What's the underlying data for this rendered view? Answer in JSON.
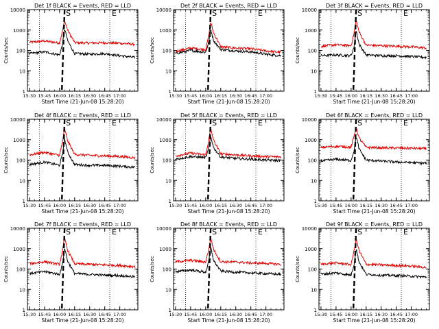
{
  "colors": {
    "events": "#000000",
    "lld": "#e00000",
    "axis": "#000000",
    "background": "#ffffff"
  },
  "chart_data": [
    {
      "type": "line",
      "title": "Det 1f BLACK = Events, RED = LLD",
      "xlabel": "Start Time (21-Jun-08 15:28:20)",
      "ylabel": "Counts/sec",
      "yscale": "log",
      "ylim": [
        1,
        10000
      ],
      "xlim": [
        "15:28",
        "17:18"
      ],
      "x_ticks": [
        "15:30",
        "15:45",
        "16:00",
        "16:15",
        "16:30",
        "16:45",
        "17:00"
      ],
      "y_ticks": [
        "1",
        "10",
        "100",
        "1000",
        "10000"
      ],
      "annotations": [
        "S",
        "E"
      ],
      "markers": {
        "dotted_start": "15:40",
        "dotted_end": "16:50",
        "peak_dashed": "16:05"
      },
      "series": [
        {
          "x": [
            "15:30",
            "15:45",
            "16:00",
            "16:03",
            "16:05",
            "16:08",
            "16:15",
            "16:30",
            "16:45",
            "17:00",
            "17:15"
          ],
          "values": [
            250,
            290,
            230,
            900,
            3000,
            1000,
            240,
            230,
            240,
            225,
            200
          ]
        },
        {
          "x": [
            "15:30",
            "15:45",
            "16:00",
            "16:03",
            "16:05",
            "16:08",
            "16:15",
            "16:30",
            "16:45",
            "17:00",
            "17:15"
          ],
          "values": [
            70,
            85,
            60,
            200,
            1200,
            300,
            70,
            65,
            70,
            55,
            45
          ]
        }
      ]
    },
    {
      "type": "line",
      "title": "Det 2f BLACK = Events, RED = LLD",
      "xlabel": "Start Time (21-Jun-08 15:28:20)",
      "ylabel": "Counts/sec",
      "yscale": "log",
      "ylim": [
        1,
        10000
      ],
      "xlim": [
        "15:28",
        "17:18"
      ],
      "x_ticks": [
        "15:30",
        "15:45",
        "16:00",
        "16:15",
        "16:30",
        "16:45",
        "17:00"
      ],
      "y_ticks": [
        "1",
        "10",
        "100",
        "1000",
        "10000"
      ],
      "annotations": [
        "S",
        "E"
      ],
      "markers": {
        "dotted_start": "15:40",
        "dotted_end": "16:50",
        "peak_dashed": "16:05"
      },
      "series": [
        {
          "x": [
            "15:30",
            "15:45",
            "16:00",
            "16:03",
            "16:05",
            "16:08",
            "16:15",
            "16:30",
            "16:45",
            "17:00",
            "17:15"
          ],
          "values": [
            90,
            130,
            110,
            500,
            2500,
            700,
            150,
            130,
            120,
            95,
            80
          ]
        },
        {
          "x": [
            "15:30",
            "15:45",
            "16:00",
            "16:03",
            "16:05",
            "16:08",
            "16:15",
            "16:30",
            "16:45",
            "17:00",
            "17:15"
          ],
          "values": [
            70,
            100,
            80,
            250,
            1100,
            300,
            110,
            95,
            85,
            65,
            55
          ]
        }
      ]
    },
    {
      "type": "line",
      "title": "Det 3f BLACK = Events, RED = LLD",
      "xlabel": "Start Time (21-Jun-08 15:28:20)",
      "ylabel": "Counts/sec",
      "yscale": "log",
      "ylim": [
        1,
        10000
      ],
      "xlim": [
        "15:28",
        "17:18"
      ],
      "x_ticks": [
        "15:30",
        "15:45",
        "16:00",
        "16:15",
        "16:30",
        "16:45",
        "17:00"
      ],
      "y_ticks": [
        "1",
        "10",
        "100",
        "1000",
        "10000"
      ],
      "annotations": [
        "S",
        "E"
      ],
      "markers": {
        "dotted_start": "15:40",
        "dotted_end": "16:50",
        "peak_dashed": "16:05"
      },
      "series": [
        {
          "x": [
            "15:30",
            "15:45",
            "16:00",
            "16:03",
            "16:05",
            "16:08",
            "16:15",
            "16:30",
            "16:45",
            "17:00",
            "17:15"
          ],
          "values": [
            160,
            190,
            170,
            700,
            3000,
            800,
            180,
            170,
            160,
            150,
            130
          ]
        },
        {
          "x": [
            "15:30",
            "15:45",
            "16:00",
            "16:03",
            "16:05",
            "16:08",
            "16:15",
            "16:30",
            "16:45",
            "17:00",
            "17:15"
          ],
          "values": [
            55,
            60,
            55,
            150,
            1000,
            200,
            60,
            55,
            55,
            50,
            45
          ]
        }
      ]
    },
    {
      "type": "line",
      "title": "Det 4f BLACK = Events, RED = LLD",
      "xlabel": "Start Time (21-Jun-08 15:28:20)",
      "ylabel": "Counts/sec",
      "yscale": "log",
      "ylim": [
        1,
        10000
      ],
      "xlim": [
        "15:28",
        "17:18"
      ],
      "x_ticks": [
        "15:30",
        "15:45",
        "16:00",
        "16:15",
        "16:30",
        "16:45",
        "17:00"
      ],
      "y_ticks": [
        "1",
        "10",
        "100",
        "1000",
        "10000"
      ],
      "annotations": [
        "S",
        "E"
      ],
      "markers": {
        "dotted_start": "15:40",
        "dotted_end": "16:50",
        "peak_dashed": "16:05"
      },
      "series": [
        {
          "x": [
            "15:30",
            "15:45",
            "16:00",
            "16:03",
            "16:05",
            "16:08",
            "16:15",
            "16:30",
            "16:45",
            "17:00",
            "17:15"
          ],
          "values": [
            180,
            240,
            170,
            800,
            3500,
            900,
            190,
            170,
            160,
            150,
            130
          ]
        },
        {
          "x": [
            "15:30",
            "15:45",
            "16:00",
            "16:03",
            "16:05",
            "16:08",
            "16:15",
            "16:30",
            "16:45",
            "17:00",
            "17:15"
          ],
          "values": [
            60,
            80,
            55,
            200,
            1100,
            250,
            60,
            55,
            55,
            50,
            45
          ]
        }
      ]
    },
    {
      "type": "line",
      "title": "Det 5f BLACK = Events, RED = LLD",
      "xlabel": "Start Time (21-Jun-08 15:28:20)",
      "ylabel": "Counts/sec",
      "yscale": "log",
      "ylim": [
        1,
        10000
      ],
      "xlim": [
        "15:28",
        "17:18"
      ],
      "x_ticks": [
        "15:30",
        "15:45",
        "16:00",
        "16:15",
        "16:30",
        "16:45",
        "17:00"
      ],
      "y_ticks": [
        "1",
        "10",
        "100",
        "1000",
        "10000"
      ],
      "annotations": [
        "S",
        "E"
      ],
      "markers": {
        "dotted_start": "15:40",
        "dotted_end": "16:50",
        "peak_dashed": "16:05"
      },
      "series": [
        {
          "x": [
            "15:30",
            "15:45",
            "16:00",
            "16:03",
            "16:05",
            "16:08",
            "16:15",
            "16:30",
            "16:45",
            "17:00",
            "17:15"
          ],
          "values": [
            160,
            220,
            180,
            900,
            3500,
            900,
            200,
            180,
            160,
            150,
            140
          ]
        },
        {
          "x": [
            "15:30",
            "15:45",
            "16:00",
            "16:03",
            "16:05",
            "16:08",
            "16:15",
            "16:30",
            "16:45",
            "17:00",
            "17:15"
          ],
          "values": [
            110,
            150,
            130,
            350,
            1500,
            400,
            140,
            120,
            110,
            100,
            95
          ]
        }
      ]
    },
    {
      "type": "line",
      "title": "Det 6f BLACK = Events, RED = LLD",
      "xlabel": "Start Time (21-Jun-08 15:28:20)",
      "ylabel": "Counts/sec",
      "yscale": "log",
      "ylim": [
        1,
        10000
      ],
      "xlim": [
        "15:28",
        "17:18"
      ],
      "x_ticks": [
        "15:30",
        "15:45",
        "16:00",
        "16:15",
        "16:30",
        "16:45",
        "17:00"
      ],
      "y_ticks": [
        "1",
        "10",
        "100",
        "1000",
        "10000"
      ],
      "annotations": [
        "S",
        "E"
      ],
      "markers": {
        "dotted_start": "15:40",
        "dotted_end": "16:50",
        "peak_dashed": "16:05"
      },
      "series": [
        {
          "x": [
            "15:30",
            "15:45",
            "16:00",
            "16:03",
            "16:05",
            "16:08",
            "16:15",
            "16:30",
            "16:45",
            "17:00",
            "17:15"
          ],
          "values": [
            420,
            470,
            430,
            1500,
            4000,
            1200,
            420,
            400,
            390,
            380,
            360
          ]
        },
        {
          "x": [
            "15:30",
            "15:45",
            "16:00",
            "16:03",
            "16:05",
            "16:08",
            "16:15",
            "16:30",
            "16:45",
            "17:00",
            "17:15"
          ],
          "values": [
            90,
            110,
            95,
            300,
            1500,
            350,
            100,
            90,
            80,
            75,
            70
          ]
        }
      ]
    },
    {
      "type": "line",
      "title": "Det 7f BLACK = Events, RED = LLD",
      "xlabel": "Start Time (21-Jun-08 15:28:20)",
      "ylabel": "Counts/sec",
      "yscale": "log",
      "ylim": [
        1,
        10000
      ],
      "xlim": [
        "15:28",
        "17:18"
      ],
      "x_ticks": [
        "15:30",
        "15:45",
        "16:00",
        "16:15",
        "16:30",
        "16:45",
        "17:00"
      ],
      "y_ticks": [
        "1",
        "10",
        "100",
        "1000",
        "10000"
      ],
      "annotations": [
        "S",
        "E"
      ],
      "markers": {
        "dotted_start": "15:40",
        "dotted_end": "16:50",
        "peak_dashed": "16:05"
      },
      "series": [
        {
          "x": [
            "15:30",
            "15:45",
            "16:00",
            "16:03",
            "16:05",
            "16:08",
            "16:15",
            "16:30",
            "16:45",
            "17:00",
            "17:15"
          ],
          "values": [
            180,
            230,
            170,
            800,
            3500,
            850,
            180,
            170,
            160,
            150,
            130
          ]
        },
        {
          "x": [
            "15:30",
            "15:45",
            "16:00",
            "16:03",
            "16:05",
            "16:08",
            "16:15",
            "16:30",
            "16:45",
            "17:00",
            "17:15"
          ],
          "values": [
            60,
            75,
            55,
            180,
            1100,
            250,
            60,
            55,
            50,
            48,
            42
          ]
        }
      ]
    },
    {
      "type": "line",
      "title": "Det 8f BLACK = Events, RED = LLD",
      "xlabel": "Start Time (21-Jun-08 15:28:20)",
      "ylabel": "Counts/sec",
      "yscale": "log",
      "ylim": [
        1,
        10000
      ],
      "xlim": [
        "15:28",
        "17:18"
      ],
      "x_ticks": [
        "15:30",
        "15:45",
        "16:00",
        "16:15",
        "16:30",
        "16:45",
        "17:00"
      ],
      "y_ticks": [
        "1",
        "10",
        "100",
        "1000",
        "10000"
      ],
      "annotations": [
        "S",
        "E"
      ],
      "markers": {
        "dotted_start": "15:40",
        "dotted_end": "16:50",
        "peak_dashed": "16:05"
      },
      "series": [
        {
          "x": [
            "15:30",
            "15:45",
            "16:00",
            "16:03",
            "16:05",
            "16:08",
            "16:15",
            "16:30",
            "16:45",
            "17:00",
            "17:15"
          ],
          "values": [
            230,
            270,
            220,
            900,
            3500,
            900,
            230,
            220,
            200,
            190,
            170
          ]
        },
        {
          "x": [
            "15:30",
            "15:45",
            "16:00",
            "16:03",
            "16:05",
            "16:08",
            "16:15",
            "16:30",
            "16:45",
            "17:00",
            "17:15"
          ],
          "values": [
            75,
            90,
            70,
            220,
            1200,
            260,
            80,
            70,
            65,
            60,
            55
          ]
        }
      ]
    },
    {
      "type": "line",
      "title": "Det 9f BLACK = Events, RED = LLD",
      "xlabel": "Start Time (21-Jun-08 15:28:20)",
      "ylabel": "Counts/sec",
      "yscale": "log",
      "ylim": [
        1,
        10000
      ],
      "xlim": [
        "15:28",
        "17:18"
      ],
      "x_ticks": [
        "15:30",
        "15:45",
        "16:00",
        "16:15",
        "16:30",
        "16:45",
        "17:00"
      ],
      "y_ticks": [
        "1",
        "10",
        "100",
        "1000",
        "10000"
      ],
      "annotations": [
        "S",
        "E"
      ],
      "markers": {
        "dotted_start": "15:40",
        "dotted_end": "16:50",
        "peak_dashed": "16:05"
      },
      "series": [
        {
          "x": [
            "15:30",
            "15:45",
            "16:00",
            "16:03",
            "16:05",
            "16:08",
            "16:15",
            "16:30",
            "16:45",
            "17:00",
            "17:15"
          ],
          "values": [
            170,
            200,
            165,
            800,
            3000,
            800,
            170,
            160,
            150,
            140,
            120
          ]
        },
        {
          "x": [
            "15:30",
            "15:45",
            "16:00",
            "16:03",
            "16:05",
            "16:08",
            "16:15",
            "16:30",
            "16:45",
            "17:00",
            "17:15"
          ],
          "values": [
            55,
            65,
            50,
            170,
            1000,
            220,
            55,
            50,
            48,
            45,
            40
          ]
        }
      ]
    }
  ]
}
